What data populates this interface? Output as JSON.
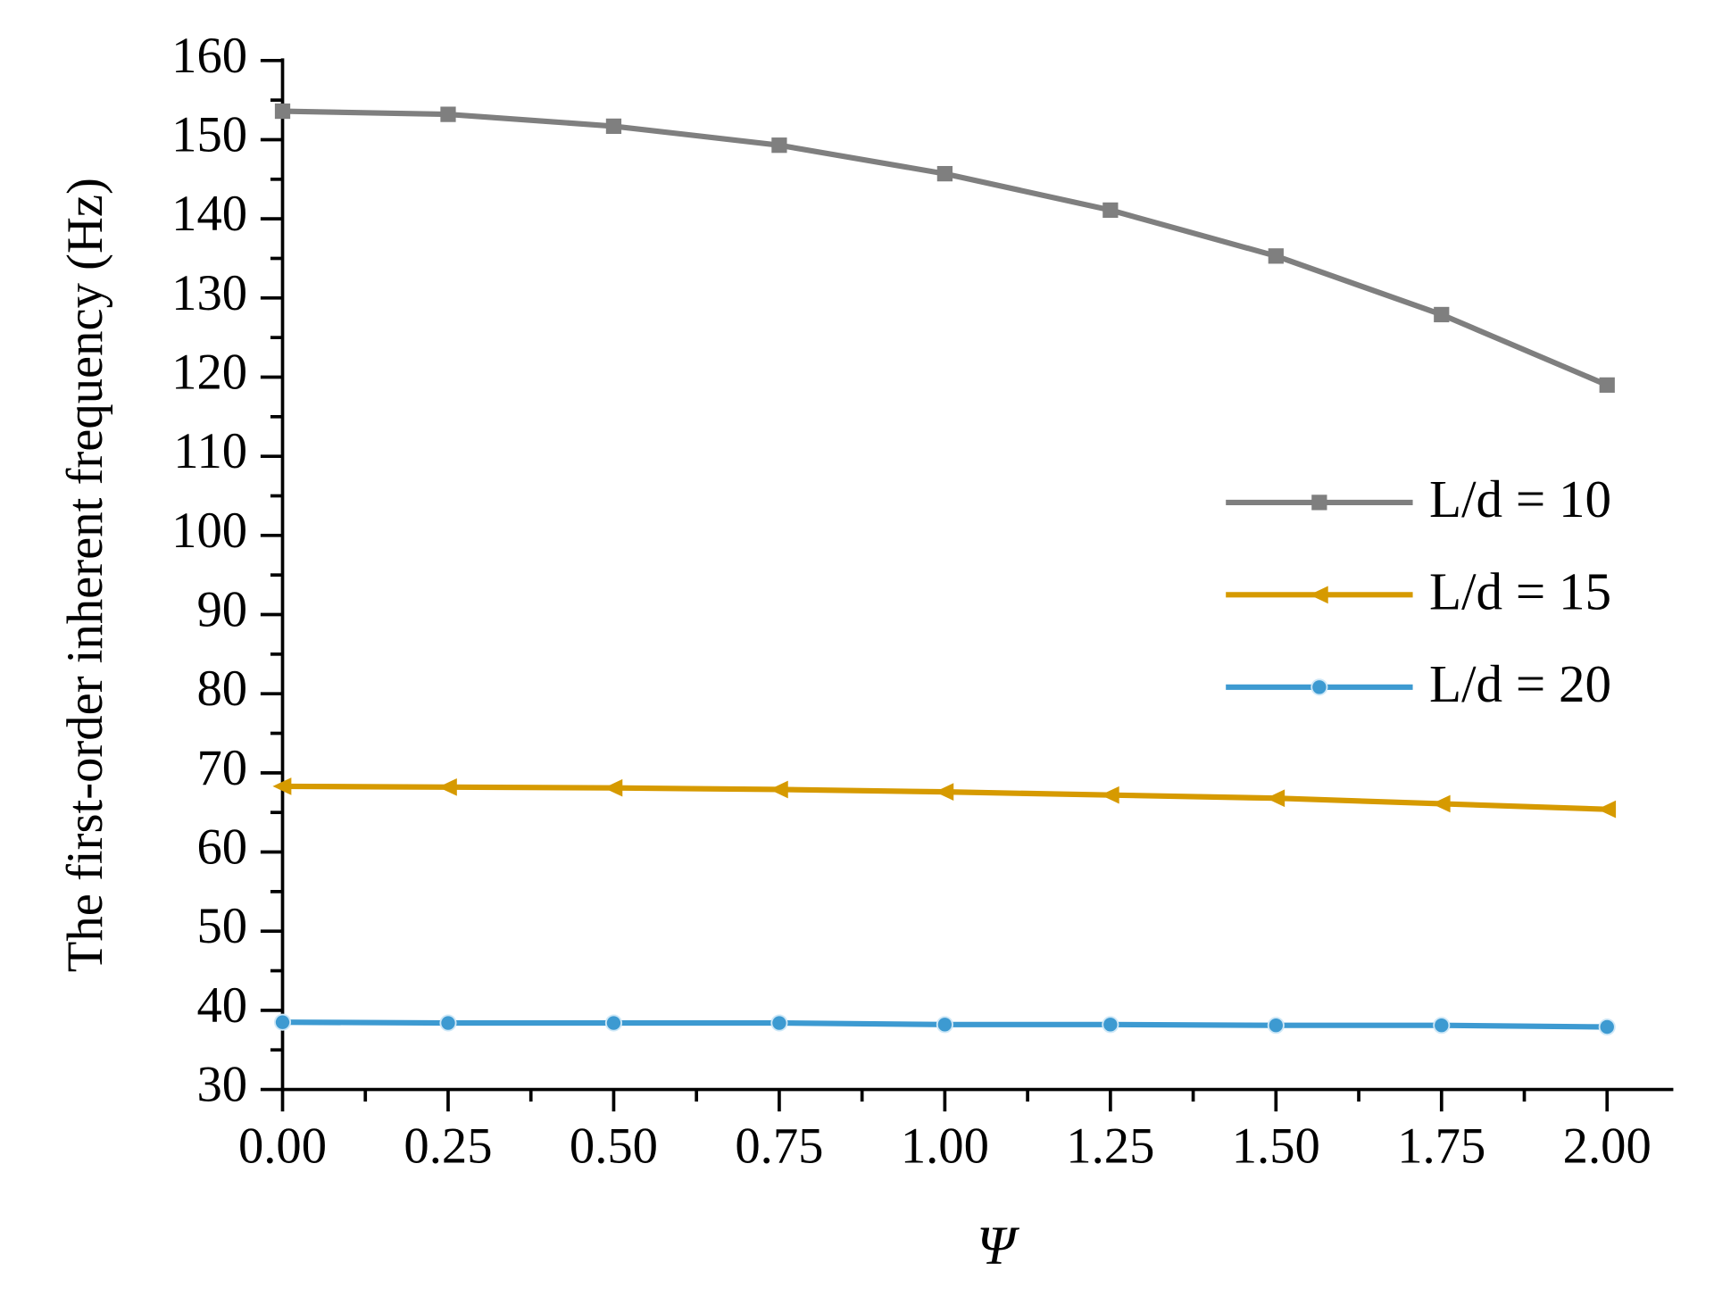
{
  "chart_data": {
    "type": "line",
    "x_label": "Ψ",
    "y_label": "The first-order inherent frequency (Hz)",
    "x": [
      0,
      0.25,
      0.5,
      0.75,
      1,
      1.25,
      1.5,
      1.75,
      2
    ],
    "series": [
      {
        "name": "L/d = 10",
        "color": "#7f7f7f",
        "marker": "square",
        "values": [
          153.6,
          153.2,
          151.7,
          149.3,
          145.7,
          141.1,
          135.3,
          127.9,
          119.0
        ]
      },
      {
        "name": "L/d = 15",
        "color": "#d69a00",
        "marker": "triangle-left",
        "values": [
          68.3,
          68.2,
          68.1,
          67.9,
          67.6,
          67.2,
          66.8,
          66.1,
          65.4
        ]
      },
      {
        "name": "L/d = 20",
        "color": "#3d9ad1",
        "marker": "circle",
        "values": [
          38.5,
          38.4,
          38.4,
          38.4,
          38.2,
          38.2,
          38.1,
          38.1,
          37.9
        ]
      }
    ],
    "xlim": [
      0,
      2.1
    ],
    "xticks": [
      {
        "value": 0,
        "label": "0.00"
      },
      {
        "value": 0.25,
        "label": "0.25"
      },
      {
        "value": 0.5,
        "label": "0.50"
      },
      {
        "value": 0.75,
        "label": "0.75"
      },
      {
        "value": 1,
        "label": "1.00"
      },
      {
        "value": 1.25,
        "label": "1.25"
      },
      {
        "value": 1.5,
        "label": "1.50"
      },
      {
        "value": 1.75,
        "label": "1.75"
      },
      {
        "value": 2,
        "label": "2.00"
      }
    ],
    "ylim": [
      30,
      160
    ],
    "yticks": [
      30,
      40,
      50,
      60,
      70,
      80,
      90,
      100,
      110,
      120,
      130,
      140,
      150,
      160
    ],
    "grid": false,
    "legend": "right"
  }
}
